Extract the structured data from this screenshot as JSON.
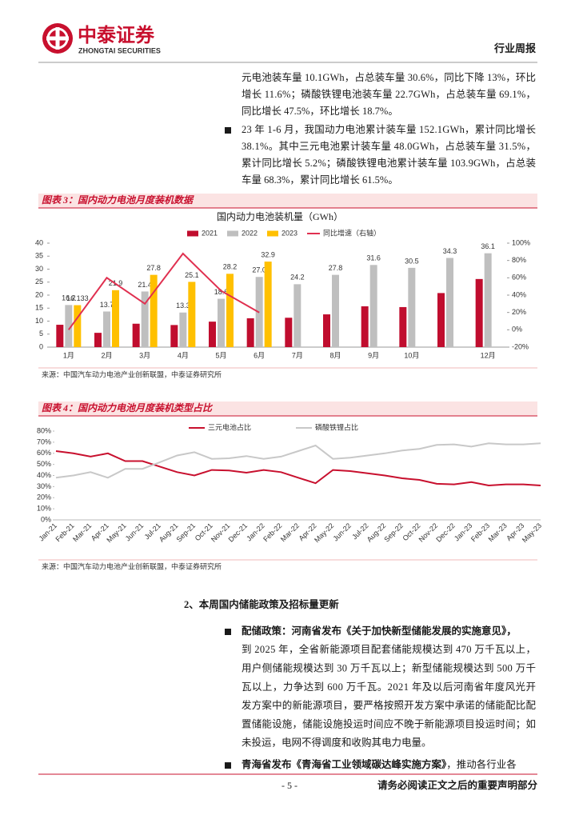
{
  "header": {
    "company": "中泰证券",
    "company_en": "ZHONGTAI SECURITIES",
    "report_type": "行业周报"
  },
  "body_top": [
    {
      "bullet": false,
      "lines": [
        "元电池装车量 10.1GWh，占总装车量 30.6%，同比下降 13%，环比",
        "增长 11.6%；磷酸铁锂电池装车量 22.7GWh，占总装车量 69.1%，",
        "同比增长 47.5%，环比增长 18.7%。"
      ]
    },
    {
      "bullet": true,
      "lines": [
        "23 年 1-6 月，我国动力电池累计装车量 152.1GWh，累计同比增长",
        "38.1%。其中三元电池累计装车量 48.0GWh，占总装车量 31.5%，",
        "累计同比增长 5.2%；磷酸铁锂电池累计装车量 103.9GWh，占总装",
        "车量 68.3%，累计同比增长 61.5%。"
      ]
    }
  ],
  "figures": [
    {
      "label": "图表 3：国内动力电池月度装机数据",
      "source": "来源：中国汽车动力电池产业创新联盟，中泰证券研究所",
      "chart": {
        "type": "bar_line",
        "title": "国内动力电池装机量（GWh）",
        "categories": [
          "1月",
          "2月",
          "3月",
          "4月",
          "5月",
          "6月",
          "7月",
          "8月",
          "9月",
          "10月",
          null,
          "12月"
        ],
        "series": [
          {
            "name": "2021",
            "color": "#c00d2e",
            "values": [
              8.6,
              5.5,
              9.0,
              8.5,
              9.8,
              11.1,
              11.3,
              12.6,
              15.7,
              15.4,
              20.8,
              26.2
            ]
          },
          {
            "name": "2022",
            "color": "#bfbfbf",
            "values": [
              16.2,
              13.7,
              21.4,
              13.3,
              18.6,
              27.0,
              24.2,
              27.8,
              31.6,
              30.5,
              34.3,
              36.1
            ],
            "value_labels": [
              "16.2",
              "13.7",
              "21.4",
              "13.3",
              "18.6",
              "27.0",
              "24.2",
              "27.8",
              "31.6",
              "30.5",
              "34.3",
              "36.1"
            ]
          },
          {
            "name": "2023",
            "color": "#ffc000",
            "values": [
              16.133,
              21.9,
              27.8,
              25.1,
              28.2,
              32.9,
              null,
              null,
              null,
              null,
              null,
              null
            ],
            "value_labels": [
              "16.133",
              "21.9",
              "27.8",
              "25.1",
              "28.2",
              "32.9",
              null,
              null,
              null,
              null,
              null,
              null
            ]
          },
          {
            "name": "同比增速（右轴）",
            "type": "line",
            "axis": "y2",
            "color": "#e03050",
            "values": [
              0,
              60,
              30,
              88,
              45,
              20,
              null,
              null,
              null,
              null,
              null,
              null
            ]
          }
        ],
        "ylim": [
          0,
          40
        ],
        "yticks": [
          0,
          5,
          10,
          15,
          20,
          25,
          30,
          35,
          40
        ],
        "y2lim": [
          -20,
          100
        ],
        "y2ticks": [
          {
            "value": -20,
            "label": "-20%"
          },
          {
            "value": 0,
            "label": "0%"
          },
          {
            "value": 20,
            "label": "20%"
          },
          {
            "value": 40,
            "label": "40%"
          },
          {
            "value": 60,
            "label": "60%"
          },
          {
            "value": 80,
            "label": "80%"
          },
          {
            "value": 100,
            "label": "100%"
          }
        ],
        "grid": false,
        "legend": "top"
      }
    },
    {
      "label": "图表 4：国内动力电池月度装机类型占比",
      "source": "来源：中国汽车动力电池产业创新联盟，中泰证券研究所",
      "chart": {
        "type": "line",
        "categories": [
          "Jan-21",
          "Feb-21",
          "Mar-21",
          "Apr-21",
          "May-21",
          "Jun-21",
          "Jul-21",
          "Aug-21",
          "Sep-21",
          "Oct-21",
          "Nov-21",
          "Dec-21",
          "Jan-22",
          "Feb-22",
          "Mar-22",
          "Apr-22",
          "May-22",
          "Jun-22",
          "Jul-22",
          "Aug-22",
          "Sep-22",
          "Oct-22",
          "Nov-22",
          "Dec-22",
          "Jan-23",
          "Feb-23",
          "Mar-23",
          "Apr-23",
          "May-23"
        ],
        "series": [
          {
            "name": "三元电池占比",
            "color": "#c8102e",
            "values": [
              62,
              60,
              57,
              60,
              53,
              53,
              48,
              43,
              40,
              45,
              44.5,
              42.5,
              45,
              43,
              38,
              33,
              45,
              44,
              42,
              40,
              37.5,
              36,
              32.5,
              32,
              34,
              31,
              32,
              32,
              31
            ]
          },
          {
            "name": "磷酸铁锂占比",
            "color": "#c8c8c8",
            "values": [
              38,
              40,
              43,
              38,
              46,
              46,
              52,
              58,
              61,
              55,
              55.5,
              57.5,
              55,
              57,
              62,
              67,
              55,
              56,
              58,
              60,
              62.5,
              64,
              67.5,
              68,
              66,
              69,
              68,
              68,
              69
            ]
          }
        ],
        "ylim": [
          0,
          80
        ],
        "yticks": [
          {
            "value": 0,
            "label": "0%"
          },
          {
            "value": 10,
            "label": "10%"
          },
          {
            "value": 20,
            "label": "20%"
          },
          {
            "value": 30,
            "label": "30%"
          },
          {
            "value": 40,
            "label": "40%"
          },
          {
            "value": 50,
            "label": "50%"
          },
          {
            "value": 60,
            "label": "60%"
          },
          {
            "value": 70,
            "label": "70%"
          },
          {
            "value": 80,
            "label": "80%"
          }
        ],
        "grid": false,
        "legend": "top"
      }
    }
  ],
  "section": {
    "heading": "2、本周国内储能政策及招标量更新",
    "items": [
      {
        "lead": "配储政策：河南省发布《关于加快新型储能发展的实施意见》，",
        "lines": [
          "到 2025 年，全省新能源项目配套储能规模达到 470 万千瓦以上，",
          "用户侧储能规模达到 30 万千瓦以上；新型储能规模达到 500 万千",
          "瓦以上，力争达到 600 万千瓦。2021 年及以后河南省年度风光开",
          "发方案中的新能源项目，要严格按照开发方案中承诺的储能配比配",
          "置储能设施，储能设施投运时间应不晚于新能源项目投运时间；如",
          "未投运，电网不得调度和收购其电力电量。"
        ]
      },
      {
        "lead": "青海省发布《青海省工业领域碳达峰实施方案》",
        "tail": "，推动各行业各"
      }
    ]
  },
  "footer": {
    "page": "- 5 -",
    "disclaimer": "请务必阅读正文之后的重要声明部分"
  }
}
